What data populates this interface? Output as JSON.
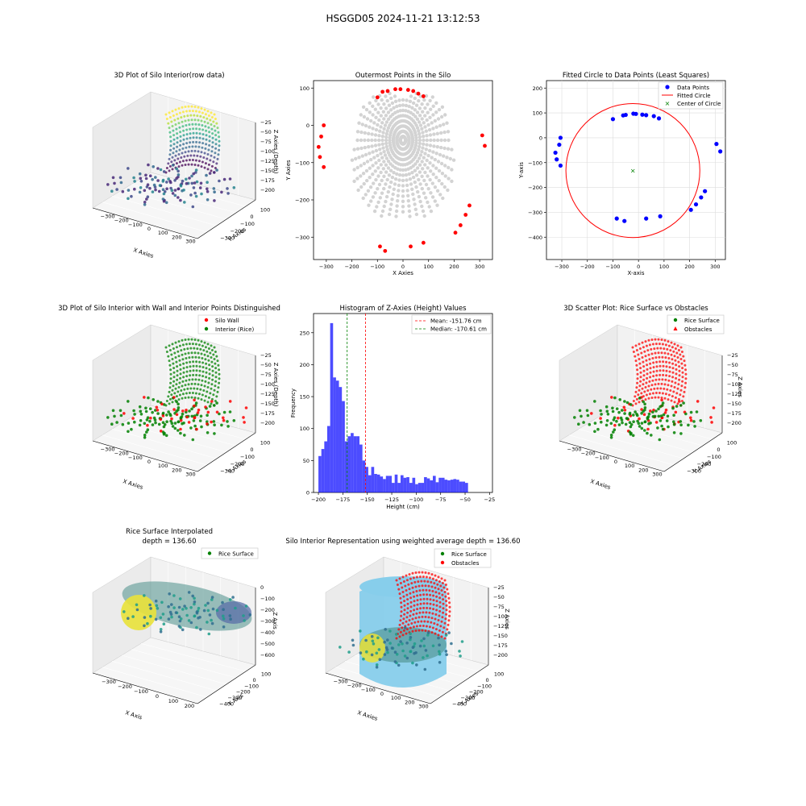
{
  "suptitle": "HSGGD05 2024-11-21 13:12:53",
  "colors": {
    "wall": "#ff0000",
    "interior": "#008000",
    "histogram": "#0000ff",
    "scatter_gray": "#d3d3d3",
    "circle_points": "#0000ff",
    "silo_fill": "#87ceeb"
  },
  "panels": {
    "p1": {
      "title": "3D Plot of Silo Interior(row data)",
      "xlabel": "X Axies",
      "ylabel": "Y Axies",
      "zlabel": "Z Axies (Depth)",
      "xticks": [
        "−300",
        "−200",
        "−100",
        "0",
        "100",
        "200",
        "300"
      ],
      "yticks": [
        "100",
        "0",
        "−100",
        "−200",
        "−300"
      ],
      "zticks": [
        "−25",
        "−50",
        "−75",
        "−100",
        "−125",
        "−150",
        "−175",
        "−200"
      ]
    },
    "p2": {
      "title": "Outermost Points in the Silo",
      "xlabel": "X Axies",
      "ylabel": "Y Axies",
      "xticks": [
        "−300",
        "−200",
        "−100",
        "0",
        "100",
        "200",
        "300"
      ],
      "yticks": [
        "100",
        "0",
        "−100",
        "−200",
        "−300"
      ]
    },
    "p3": {
      "title": "Fitted Circle to Data Points (Least Squares)",
      "xlabel": "X-axis",
      "ylabel": "Y-axis",
      "xticks": [
        "−300",
        "−200",
        "−100",
        "0",
        "100",
        "200",
        "300"
      ],
      "yticks": [
        "200",
        "100",
        "0",
        "−100",
        "−200",
        "−300",
        "−400"
      ],
      "legend": [
        "Data Points",
        "Fitted Circle",
        "Center of Circle"
      ]
    },
    "p4": {
      "title": "3D Plot of Silo Interior with Wall and Interior Points Distinguished",
      "xlabel": "X Axies",
      "ylabel": "Y Axies",
      "zlabel": "Z Axies (Depth)",
      "xticks": [
        "−300",
        "−200",
        "−100",
        "0",
        "100",
        "200",
        "300"
      ],
      "yticks": [
        "100",
        "0",
        "−100",
        "−200",
        "−300"
      ],
      "zticks": [
        "−25",
        "−50",
        "−75",
        "−100",
        "−125",
        "−150",
        "−175",
        "−200"
      ],
      "legend": [
        "Silo Wall",
        "Interior (Rice)"
      ]
    },
    "p5": {
      "title": "Histogram of Z-Axies (Height) Values",
      "xlabel": "Height (cm)",
      "ylabel": "Frequency",
      "xticks": [
        "−200",
        "−175",
        "−150",
        "−125",
        "−100",
        "−75",
        "−50",
        "−25"
      ],
      "yticks": [
        "0",
        "50",
        "100",
        "150",
        "200",
        "250"
      ],
      "legend": [
        "Mean: -151.76 cm",
        "Median: -170.61 cm"
      ]
    },
    "p6": {
      "title": "3D Scatter Plot: Rice Surface vs Obstacles",
      "xlabel": "X Axies",
      "ylabel": "Y Axies",
      "zlabel": "Z Axies",
      "xticks": [
        "−300",
        "−200",
        "−100",
        "0",
        "100",
        "200",
        "300"
      ],
      "yticks": [
        "100",
        "0",
        "−100",
        "−200",
        "−300"
      ],
      "zticks": [
        "−25",
        "−50",
        "−75",
        "−100",
        "−125",
        "−150",
        "−175",
        "−200"
      ],
      "legend": [
        "Rice Surface",
        "Obstacles"
      ]
    },
    "p7": {
      "title_line1": "Rice Surface Interpolated",
      "title_line2": "depth = 136.60",
      "xlabel": "X Axis",
      "ylabel": "Y Axis",
      "zlabel": "Z Axis",
      "xticks": [
        "−300",
        "−200",
        "−100",
        "0",
        "100",
        "200"
      ],
      "yticks": [
        "100",
        "0",
        "−100",
        "−200",
        "−300",
        "−400"
      ],
      "zticks": [
        "0",
        "−100",
        "−200",
        "−300",
        "−400",
        "−500",
        "−600"
      ],
      "legend": [
        "Rice Surface"
      ]
    },
    "p8": {
      "title": "Silo Interior Representation using weighted average depth = 136.60",
      "xlabel": "X Axies",
      "ylabel": "Y Axies",
      "zlabel": "Z Axies",
      "xticks": [
        "−300",
        "−200",
        "−100",
        "0",
        "100",
        "200",
        "300"
      ],
      "yticks": [
        "100",
        "0",
        "−100",
        "−200",
        "−300",
        "−400"
      ],
      "zticks": [
        "−25",
        "−50",
        "−75",
        "−100",
        "−125",
        "−150",
        "−175",
        "−200"
      ],
      "legend": [
        "Rice Surface",
        "Obstacles"
      ]
    }
  },
  "chart_data": [
    {
      "type": "scatter",
      "title": "Outermost Points in the Silo",
      "xlabel": "X Axies",
      "ylabel": "Y Axies",
      "xlim": [
        -350,
        350
      ],
      "ylim": [
        -360,
        120
      ],
      "outer_points": [
        {
          "x": -100,
          "y": 75
        },
        {
          "x": -80,
          "y": 90
        },
        {
          "x": -60,
          "y": 92
        },
        {
          "x": -30,
          "y": 97
        },
        {
          "x": -10,
          "y": 97
        },
        {
          "x": 20,
          "y": 95
        },
        {
          "x": 40,
          "y": 92
        },
        {
          "x": 60,
          "y": 85
        },
        {
          "x": 80,
          "y": 78
        },
        {
          "x": -310,
          "y": 0
        },
        {
          "x": -320,
          "y": -30
        },
        {
          "x": -330,
          "y": -58
        },
        {
          "x": -325,
          "y": -85
        },
        {
          "x": -310,
          "y": -112
        },
        {
          "x": 310,
          "y": -27
        },
        {
          "x": 320,
          "y": -55
        },
        {
          "x": 260,
          "y": -215
        },
        {
          "x": 245,
          "y": -240
        },
        {
          "x": 225,
          "y": -268
        },
        {
          "x": 205,
          "y": -288
        },
        {
          "x": 80,
          "y": -315
        },
        {
          "x": 30,
          "y": -325
        },
        {
          "x": -70,
          "y": -337
        },
        {
          "x": -90,
          "y": -325
        }
      ]
    },
    {
      "type": "scatter",
      "title": "Fitted Circle to Data Points (Least Squares)",
      "xlabel": "X-axis",
      "ylabel": "Y-axis",
      "xlim": [
        -360,
        340
      ],
      "ylim": [
        -490,
        230
      ],
      "series": [
        {
          "name": "Data Points",
          "points": [
            {
              "x": -100,
              "y": 75
            },
            {
              "x": -60,
              "y": 90
            },
            {
              "x": -50,
              "y": 92
            },
            {
              "x": -20,
              "y": 97
            },
            {
              "x": -10,
              "y": 96
            },
            {
              "x": 15,
              "y": 93
            },
            {
              "x": 30,
              "y": 91
            },
            {
              "x": 60,
              "y": 87
            },
            {
              "x": 80,
              "y": 78
            },
            {
              "x": -305,
              "y": 0
            },
            {
              "x": -310,
              "y": -28
            },
            {
              "x": -325,
              "y": -60
            },
            {
              "x": -320,
              "y": -87
            },
            {
              "x": -305,
              "y": -112
            },
            {
              "x": 305,
              "y": -25
            },
            {
              "x": 320,
              "y": -55
            },
            {
              "x": 260,
              "y": -215
            },
            {
              "x": 245,
              "y": -240
            },
            {
              "x": 225,
              "y": -268
            },
            {
              "x": 205,
              "y": -290
            },
            {
              "x": 85,
              "y": -316
            },
            {
              "x": 30,
              "y": -325
            },
            {
              "x": -55,
              "y": -335
            },
            {
              "x": -85,
              "y": -325
            }
          ]
        },
        {
          "name": "Fitted Circle",
          "center": {
            "x": -22,
            "y": -132
          },
          "radius": 262
        },
        {
          "name": "Center of Circle",
          "points": [
            {
              "x": -22,
              "y": -132
            }
          ]
        }
      ]
    },
    {
      "type": "bar",
      "title": "Histogram of Z-Axies (Height) Values",
      "xlabel": "Height (cm)",
      "ylabel": "Frequency",
      "xlim": [
        -205,
        -22
      ],
      "ylim": [
        0,
        280
      ],
      "bin_start": -200,
      "bin_width": 3,
      "values": [
        57,
        68,
        80,
        104,
        265,
        180,
        175,
        165,
        143,
        80,
        88,
        93,
        88,
        88,
        75,
        50,
        40,
        27,
        40,
        29,
        28,
        25,
        21,
        26,
        26,
        15,
        28,
        15,
        27,
        23,
        24,
        15,
        23,
        13,
        15,
        15,
        24,
        22,
        19,
        26,
        16,
        23,
        23,
        20,
        19,
        20,
        21,
        20,
        17,
        17,
        15
      ],
      "annotations": [
        {
          "name": "Mean: -151.76 cm",
          "x": -151.76
        },
        {
          "name": "Median: -170.61 cm",
          "x": -170.61
        }
      ]
    }
  ]
}
